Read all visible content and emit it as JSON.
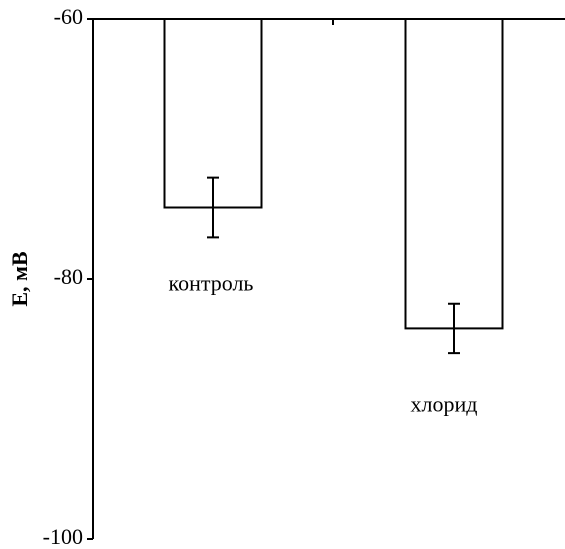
{
  "chart_data": {
    "type": "bar",
    "y_label": "E, мВ",
    "categories": [
      "контроль",
      "хлорид"
    ],
    "values": [
      -74.5,
      -83.8
    ],
    "errors": [
      2.3,
      1.9
    ],
    "color": "#ffffff",
    "ylim": [
      -100,
      -60
    ],
    "yticks": [
      -100,
      -80,
      -60
    ],
    "grid": false
  }
}
